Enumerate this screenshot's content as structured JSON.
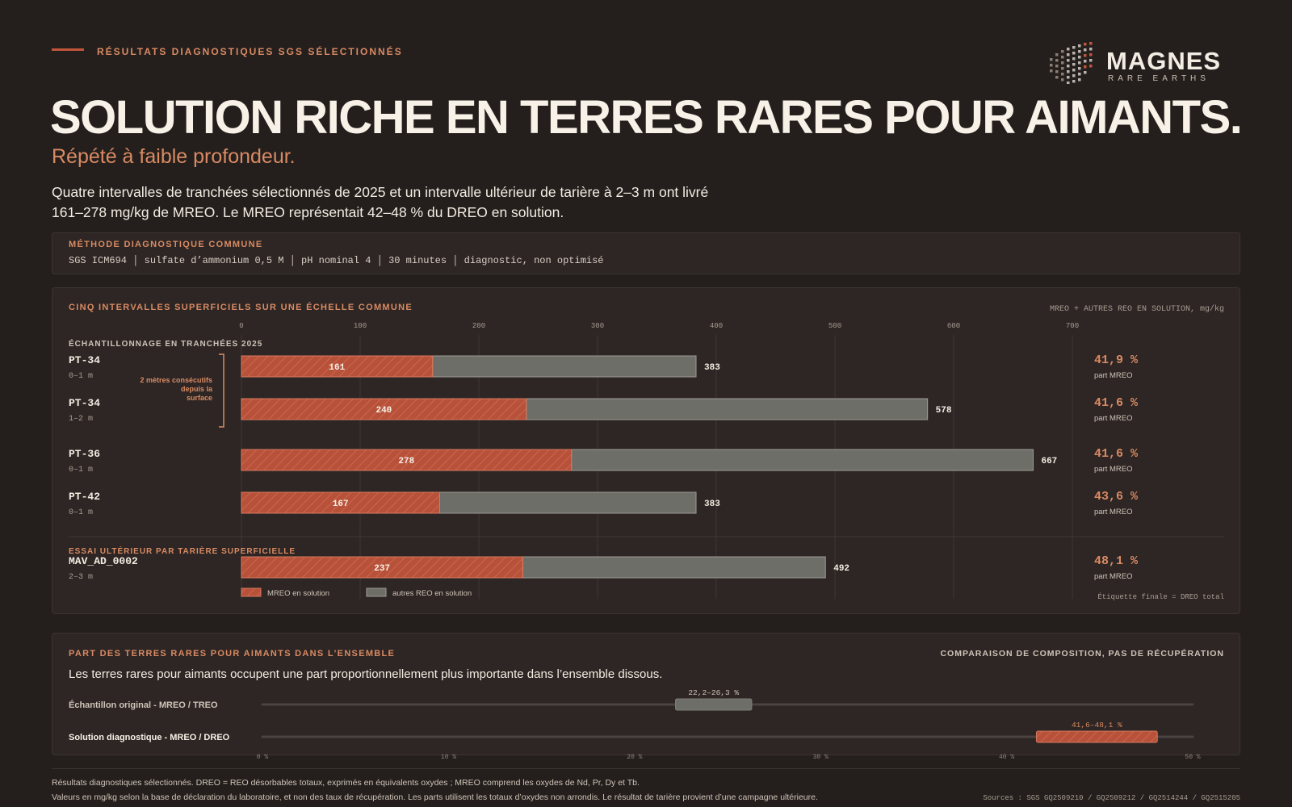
{
  "header": {
    "kicker": "RÉSULTATS DIAGNOSTIQUES SGS SÉLECTIONNÉS",
    "title": "SOLUTION RICHE EN TERRES RARES POUR AIMANTS.",
    "subtitle": "Répété à faible profondeur.",
    "intro": "Quatre intervalles de tranchées sélectionnés de 2025 et un intervalle ultérieur de tarière à 2–3 m ont livré 161–278 mg/kg de MREO. Le MREO représentait 42–48 % du DREO en solution."
  },
  "logo": {
    "name": "MAGNES",
    "sub": "RARE EARTHS"
  },
  "method": {
    "label": "MÉTHODE DIAGNOSTIQUE COMMUNE",
    "text": "SGS ICM694 │ sulfate d’ammonium 0,5 M │ pH nominal 4 │ 30 minutes │ diagnostic, non optimisé"
  },
  "colors": {
    "mreo": "#b8513a",
    "other": "#6e6e68",
    "accent": "#d98a63",
    "background": "#241f1d",
    "panel": "#2d2624"
  },
  "footer": {
    "line1": "Résultats diagnostiques sélectionnés. DREO = REO désorbables totaux, exprimés en équivalents oxydes ; MREO comprend les oxydes de Nd, Pr, Dy et Tb.",
    "line2": "Valeurs en mg/kg selon la base de déclaration du laboratoire, et non des taux de récupération. Les parts utilisent les totaux d’oxydes non arrondis. Le résultat de tarière provient d’une campagne ultérieure.",
    "sources": "Sources : SGS GQ2509210 / GQ2509212 / GQ2514244 / GQ2515205"
  },
  "chart_data": [
    {
      "type": "bar",
      "stacked": true,
      "orientation": "horizontal",
      "title": "CINQ INTERVALLES SUPERFICIELS SUR UNE ÉCHELLE COMMUNE",
      "units_label": "MREO + AUTRES REO EN SOLUTION, mg/kg",
      "xlim": [
        0,
        700
      ],
      "xticks": [
        0,
        100,
        200,
        300,
        400,
        500,
        600,
        700
      ],
      "grid": true,
      "groups": [
        {
          "label": "ÉCHANTILLONNAGE EN TRANCHÉES 2025",
          "rows": [
            0,
            1,
            2,
            3
          ]
        },
        {
          "label": "ESSAI ULTÉRIEUR PAR TARIÈRE SUPERFICIELLE",
          "rows": [
            4
          ]
        }
      ],
      "rows": [
        {
          "sample": "PT-34",
          "depth": "0–1 m",
          "mreo": 161,
          "total": 383,
          "share": "41,9 %"
        },
        {
          "sample": "PT-34",
          "depth": "1–2 m",
          "mreo": 240,
          "total": 578,
          "share": "41,6 %"
        },
        {
          "sample": "PT-36",
          "depth": "0–1 m",
          "mreo": 278,
          "total": 667,
          "share": "41,6 %"
        },
        {
          "sample": "PT-42",
          "depth": "0–1 m",
          "mreo": 167,
          "total": 383,
          "share": "43,6 %"
        },
        {
          "sample": "MAV_AD_0002",
          "depth": "2–3 m",
          "mreo": 237,
          "total": 492,
          "share": "48,1 %"
        }
      ],
      "share_caption": "part MREO",
      "bracket_note": [
        "2 mètres consécutifs",
        "depuis la",
        "surface"
      ],
      "legend": [
        "MREO en solution",
        "autres REO en solution"
      ],
      "end_note": "Étiquette finale = DREO total"
    },
    {
      "type": "range",
      "title": "PART DES TERRES RARES POUR AIMANTS DANS L’ENSEMBLE",
      "right_label": "COMPARAISON DE COMPOSITION, PAS DE RÉCUPÉRATION",
      "subtitle": "Les terres rares pour aimants occupent une part proportionnellement plus importante dans l’ensemble dissous.",
      "xlim": [
        0,
        50
      ],
      "xticks": [
        "0 %",
        "10 %",
        "20 %",
        "30 %",
        "40 %",
        "50 %"
      ],
      "rows": [
        {
          "label": "Échantillon original - MREO / TREO",
          "low": 22.2,
          "high": 26.3,
          "text": "22,2–26,3 %"
        },
        {
          "label": "Solution diagnostique - MREO / DREO",
          "low": 41.6,
          "high": 48.1,
          "text": "41,6–48,1 %"
        }
      ]
    }
  ]
}
